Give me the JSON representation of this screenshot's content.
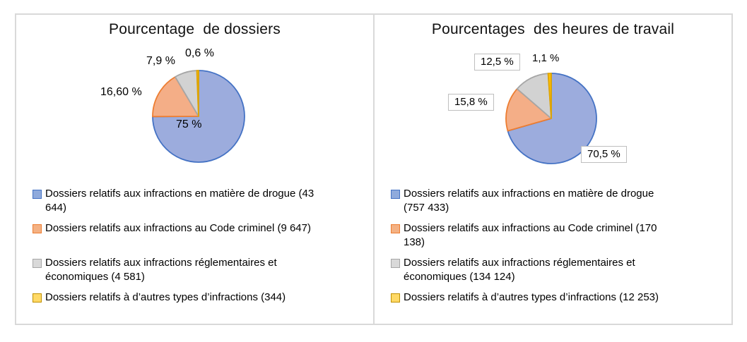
{
  "frame": {
    "border_color": "#d9d9d9",
    "background": "#ffffff"
  },
  "chart_data": [
    {
      "type": "pie",
      "title": "Pourcentage  de dossiers",
      "legend_position": "bottom",
      "categories": [
        "Dossiers relatifs aux infractions en matière de drogue",
        "Dossiers relatifs aux infractions au Code criminel",
        "Dossiers relatifs aux infractions réglementaires et économiques",
        "Dossiers relatifs à d’autres types d’infractions"
      ],
      "values": [
        75,
        16.6,
        7.9,
        0.6
      ],
      "counts": [
        43644,
        9647,
        4581,
        344
      ],
      "data_labels": [
        "75 %",
        "16,60 %",
        "7,9 %",
        "0,6 %"
      ],
      "boxed_labels": [
        false,
        false,
        false,
        false
      ],
      "legend_labels": [
        "Dossiers relatifs aux infractions en matière de drogue (43\n644)",
        "Dossiers relatifs aux infractions au Code criminel (9 647)",
        "Dossiers relatifs aux infractions réglementaires et\néconomiques (4 581)",
        "Dossiers relatifs à d’autres types d’infractions (344)"
      ],
      "colors": [
        "#9cacdd",
        "#f4ae87",
        "#d2d2d2",
        "#ffc000"
      ],
      "border_colors": [
        "#4472c4",
        "#ed7d31",
        "#a6a6a6",
        "#e0a500"
      ],
      "marker_fills": [
        "#8faadc",
        "#f4b183",
        "#d9d9d9",
        "#ffd966"
      ],
      "marker_borders": [
        "#4472c4",
        "#ed7d31",
        "#a6a6a6",
        "#bf9000"
      ]
    },
    {
      "type": "pie",
      "title": "Pourcentages  des heures de travail",
      "legend_position": "bottom",
      "categories": [
        "Dossiers relatifs aux infractions en matière de drogue",
        "Dossiers relatifs aux infractions au Code criminel",
        "Dossiers relatifs aux infractions réglementaires et économiques",
        "Dossiers relatifs à d’autres types d’infractions"
      ],
      "values": [
        70.5,
        15.8,
        12.5,
        1.1
      ],
      "counts": [
        757433,
        170138,
        134124,
        12253
      ],
      "data_labels": [
        "70,5 %",
        "15,8 %",
        "12,5 %",
        "1,1 %"
      ],
      "boxed_labels": [
        true,
        true,
        true,
        false
      ],
      "legend_labels": [
        "Dossiers relatifs aux infractions en matière de drogue\n(757 433)",
        "Dossiers relatifs aux infractions au Code criminel (170\n138)",
        "Dossiers relatifs aux infractions réglementaires et\néconomiques (134 124)",
        "Dossiers relatifs à d’autres types d’infractions (12 253)"
      ],
      "colors": [
        "#9cacdd",
        "#f4ae87",
        "#d2d2d2",
        "#ffc000"
      ],
      "border_colors": [
        "#4472c4",
        "#ed7d31",
        "#a6a6a6",
        "#e0a500"
      ],
      "marker_fills": [
        "#8faadc",
        "#f4b183",
        "#d9d9d9",
        "#ffd966"
      ],
      "marker_borders": [
        "#4472c4",
        "#ed7d31",
        "#a6a6a6",
        "#bf9000"
      ]
    }
  ]
}
